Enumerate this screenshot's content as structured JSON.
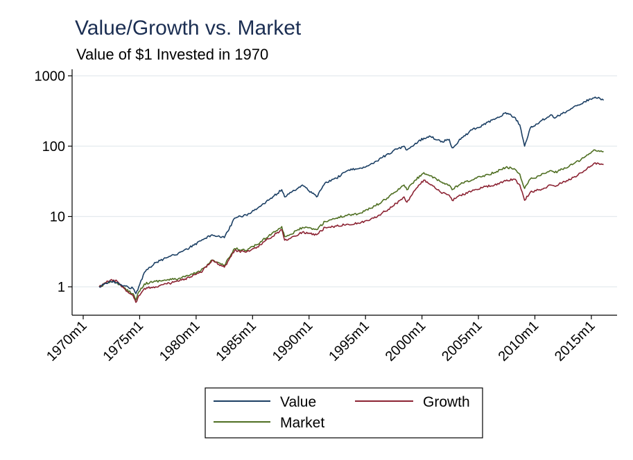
{
  "title": "Value/Growth vs. Market",
  "subtitle": "Value of $1 Invested in 1970",
  "colors": {
    "value": "#1a3e63",
    "growth": "#8b2232",
    "market": "#4e6e21",
    "grid": "#e4eaee",
    "axis": "#000000",
    "title": "#1b2e52"
  },
  "chart_data": {
    "type": "line",
    "title": "Value/Growth vs. Market",
    "subtitle": "Value of $1 Invested in 1970",
    "xlabel": "",
    "ylabel": "",
    "y_scale": "log",
    "ylim": [
      0.5,
      1300
    ],
    "y_ticks": [
      1,
      10,
      100,
      1000
    ],
    "y_tick_labels": [
      "1",
      "10",
      "100",
      "1000"
    ],
    "xlim": [
      "1970m1",
      "2016m6"
    ],
    "x_ticks": [
      "1970m1",
      "1975m1",
      "1980m1",
      "1985m1",
      "1990m1",
      "1995m1",
      "2000m1",
      "2005m1",
      "2010m1",
      "2015m1"
    ],
    "grid": true,
    "legend_position": "bottom",
    "x": [
      "1971m6",
      "1972m6",
      "1973m1",
      "1973m6",
      "1974m6",
      "1974m9",
      "1974m12",
      "1975m6",
      "1976m6",
      "1977m6",
      "1978m6",
      "1979m6",
      "1980m6",
      "1981m6",
      "1982m7",
      "1983m6",
      "1984m6",
      "1985m6",
      "1986m6",
      "1987m8",
      "1987m11",
      "1988m6",
      "1989m6",
      "1990m9",
      "1991m6",
      "1992m6",
      "1993m6",
      "1994m6",
      "1995m6",
      "1996m6",
      "1997m6",
      "1998m6",
      "1998m9",
      "1999m6",
      "2000m3",
      "2000m9",
      "2001m9",
      "2002m6",
      "2002m9",
      "2003m6",
      "2004m6",
      "2005m6",
      "2006m6",
      "2007m6",
      "2008m3",
      "2008m9",
      "2009m2",
      "2009m8",
      "2010m6",
      "2011m6",
      "2011m10",
      "2012m6",
      "2013m6",
      "2014m6",
      "2015m5",
      "2015m10",
      "2016m2"
    ],
    "series": [
      {
        "name": "Value",
        "color": "#1a3e63",
        "values": [
          1.0,
          1.2,
          1.15,
          1.05,
          0.95,
          0.8,
          1.0,
          1.6,
          2.2,
          2.6,
          3.0,
          3.6,
          4.5,
          5.5,
          5.0,
          9.5,
          10.5,
          13.0,
          17.0,
          24.0,
          19.0,
          22.0,
          28.0,
          19.0,
          30.0,
          35.0,
          45.0,
          48.0,
          55.0,
          68.0,
          85.0,
          100.0,
          88.0,
          110.0,
          130.0,
          140.0,
          115.0,
          125.0,
          95.0,
          125.0,
          170.0,
          200.0,
          240.0,
          300.0,
          260.0,
          200.0,
          100.0,
          180.0,
          220.0,
          280.0,
          250.0,
          290.0,
          360.0,
          430.0,
          500.0,
          480.0,
          450.0
        ]
      },
      {
        "name": "Growth",
        "color": "#8b2232",
        "values": [
          1.0,
          1.25,
          1.2,
          1.0,
          0.75,
          0.6,
          0.75,
          0.95,
          1.0,
          1.1,
          1.2,
          1.35,
          1.6,
          2.4,
          1.9,
          3.3,
          3.1,
          3.7,
          4.8,
          6.5,
          4.6,
          5.0,
          6.0,
          5.5,
          7.0,
          7.3,
          7.8,
          8.0,
          9.0,
          11.0,
          14.0,
          19.0,
          16.0,
          24.0,
          33.0,
          29.0,
          22.0,
          20.0,
          17.0,
          20.0,
          23.0,
          26.0,
          28.0,
          32.0,
          34.0,
          28.0,
          17.0,
          22.0,
          24.0,
          28.0,
          27.0,
          30.0,
          36.0,
          45.0,
          58.0,
          55.0,
          55.0
        ]
      },
      {
        "name": "Market",
        "color": "#4e6e21",
        "values": [
          1.0,
          1.2,
          1.15,
          1.0,
          0.8,
          0.65,
          0.85,
          1.1,
          1.2,
          1.25,
          1.3,
          1.45,
          1.7,
          2.4,
          2.0,
          3.5,
          3.3,
          4.0,
          5.3,
          7.2,
          5.2,
          5.6,
          7.0,
          6.5,
          8.5,
          9.5,
          10.5,
          11.0,
          13.0,
          16.0,
          21.0,
          28.0,
          24.0,
          33.0,
          42.0,
          38.0,
          31.0,
          28.0,
          24.0,
          29.0,
          33.0,
          38.0,
          42.0,
          50.0,
          48.0,
          40.0,
          25.0,
          34.0,
          38.0,
          45.0,
          42.0,
          47.0,
          56.0,
          70.0,
          88.0,
          84.0,
          84.0
        ]
      }
    ]
  }
}
